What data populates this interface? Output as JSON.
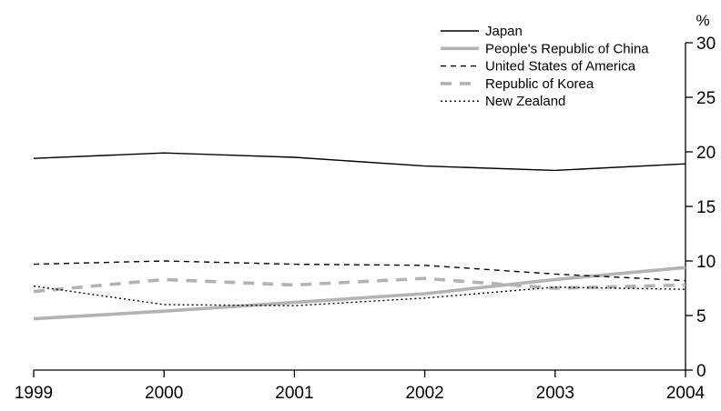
{
  "chart_data": {
    "type": "line",
    "title": "",
    "xlabel": "",
    "ylabel": "%",
    "ylim": [
      0,
      30
    ],
    "yticks": [
      "0",
      "5",
      "10",
      "15",
      "20",
      "25",
      "30"
    ],
    "x": [
      "1999",
      "2000",
      "2001",
      "2002",
      "2003",
      "2004"
    ],
    "grid": false,
    "legend_position": "top-right",
    "y_axis_side": "right",
    "series": [
      {
        "name": "Japan",
        "color": "#000000",
        "style": "solid-thin",
        "values": [
          19.4,
          19.9,
          19.5,
          18.7,
          18.3,
          18.9
        ]
      },
      {
        "name": "People's Republic of China",
        "color": "#b3b3b3",
        "style": "solid-thick",
        "values": [
          4.7,
          5.4,
          6.2,
          7.0,
          8.3,
          9.4
        ]
      },
      {
        "name": "United States of America",
        "color": "#000000",
        "style": "dashed",
        "values": [
          9.7,
          10.0,
          9.7,
          9.6,
          8.8,
          8.2
        ]
      },
      {
        "name": "Republic of Korea",
        "color": "#b3b3b3",
        "style": "dashed-thick",
        "values": [
          7.2,
          8.3,
          7.8,
          8.4,
          7.5,
          7.8
        ]
      },
      {
        "name": "New Zealand",
        "color": "#000000",
        "style": "dotted",
        "values": [
          7.7,
          6.0,
          5.9,
          6.6,
          7.6,
          7.4
        ]
      }
    ]
  }
}
